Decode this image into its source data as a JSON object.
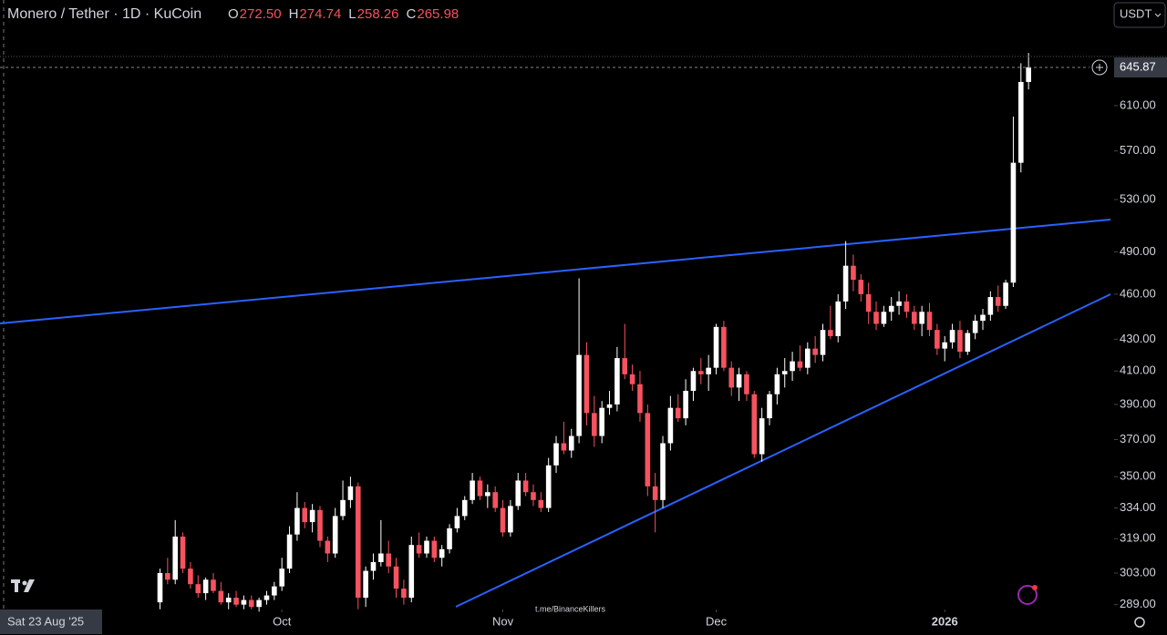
{
  "chart_data": {
    "type": "candlestick",
    "title": "Monero / Tether · 1D · KuCoin",
    "ohlc_header": [
      {
        "key": "O",
        "value": "272.50"
      },
      {
        "key": "H",
        "value": "274.74"
      },
      {
        "key": "L",
        "value": "258.26"
      },
      {
        "key": "C",
        "value": "265.98"
      }
    ],
    "currency_button": "USDT",
    "last_price": 645.87,
    "crosshair_label": "Sat 23 Aug '25",
    "watermark": "t.me/BinanceKillers",
    "up_color": "#ffffff",
    "down_color": "#f7525f",
    "log_scale": true,
    "ylim": [
      287.3,
      714.5
    ],
    "yticks": [
      {
        "value": 289,
        "label": "289.00"
      },
      {
        "value": 303,
        "label": "303.00"
      },
      {
        "value": 319,
        "label": "319.00"
      },
      {
        "value": 334,
        "label": "334.00"
      },
      {
        "value": 350,
        "label": "350.00"
      },
      {
        "value": 370,
        "label": "370.00"
      },
      {
        "value": 390,
        "label": "390.00"
      },
      {
        "value": 410,
        "label": "410.00"
      },
      {
        "value": 430,
        "label": "430.00"
      },
      {
        "value": 460,
        "label": "460.00"
      },
      {
        "value": 490,
        "label": "490.00"
      },
      {
        "value": 530,
        "label": "530.00"
      },
      {
        "value": 570,
        "label": "570.00"
      },
      {
        "value": 610,
        "label": "610.00"
      }
    ],
    "xlim": [
      -21,
      122
    ],
    "xticks": [
      {
        "value": 16,
        "label": "Oct"
      },
      {
        "value": 45,
        "label": "Nov"
      },
      {
        "value": 73,
        "label": "Dec"
      },
      {
        "value": 103,
        "label": "2026"
      }
    ],
    "ohlc": [
      [
        290,
        305,
        287,
        303
      ],
      [
        303,
        310,
        298,
        300
      ],
      [
        300,
        328,
        298,
        320
      ],
      [
        320,
        322,
        303,
        305
      ],
      [
        305,
        308,
        296,
        298
      ],
      [
        298,
        302,
        292,
        294
      ],
      [
        294,
        301,
        291,
        300
      ],
      [
        300,
        303,
        294,
        295
      ],
      [
        295,
        299,
        289,
        290
      ],
      [
        290,
        294,
        287,
        292
      ],
      [
        292,
        295,
        288,
        289
      ],
      [
        289,
        293,
        287,
        291
      ],
      [
        291,
        293,
        287,
        288
      ],
      [
        288,
        292,
        286,
        291
      ],
      [
        291,
        295,
        289,
        293
      ],
      [
        293,
        299,
        291,
        297
      ],
      [
        297,
        310,
        295,
        305
      ],
      [
        305,
        325,
        303,
        321
      ],
      [
        321,
        342,
        318,
        334
      ],
      [
        334,
        337,
        324,
        327
      ],
      [
        327,
        336,
        322,
        333
      ],
      [
        333,
        335,
        315,
        318
      ],
      [
        318,
        320,
        308,
        312
      ],
      [
        312,
        334,
        310,
        330
      ],
      [
        330,
        348,
        328,
        338
      ],
      [
        338,
        350,
        334,
        345
      ],
      [
        345,
        347,
        287,
        292
      ],
      [
        292,
        306,
        288,
        304
      ],
      [
        304,
        312,
        300,
        308
      ],
      [
        308,
        328,
        306,
        312
      ],
      [
        312,
        318,
        303,
        306
      ],
      [
        306,
        310,
        292,
        296
      ],
      [
        296,
        300,
        289,
        292
      ],
      [
        292,
        320,
        290,
        316
      ],
      [
        316,
        322,
        310,
        312
      ],
      [
        312,
        320,
        310,
        318
      ],
      [
        318,
        320,
        308,
        310
      ],
      [
        310,
        316,
        306,
        314
      ],
      [
        314,
        326,
        312,
        324
      ],
      [
        324,
        334,
        322,
        330
      ],
      [
        330,
        340,
        328,
        338
      ],
      [
        338,
        352,
        336,
        348
      ],
      [
        348,
        350,
        338,
        340
      ],
      [
        340,
        346,
        334,
        342
      ],
      [
        342,
        345,
        332,
        334
      ],
      [
        334,
        338,
        320,
        322
      ],
      [
        322,
        338,
        320,
        335
      ],
      [
        335,
        352,
        333,
        348
      ],
      [
        348,
        352,
        340,
        342
      ],
      [
        342,
        346,
        335,
        338
      ],
      [
        338,
        342,
        332,
        334
      ],
      [
        334,
        360,
        332,
        356
      ],
      [
        356,
        372,
        352,
        368
      ],
      [
        368,
        380,
        362,
        364
      ],
      [
        364,
        376,
        360,
        372
      ],
      [
        372,
        471,
        368,
        420
      ],
      [
        420,
        428,
        378,
        385
      ],
      [
        385,
        395,
        366,
        372
      ],
      [
        372,
        392,
        368,
        388
      ],
      [
        388,
        398,
        384,
        390
      ],
      [
        390,
        425,
        386,
        418
      ],
      [
        418,
        440,
        405,
        408
      ],
      [
        408,
        414,
        398,
        402
      ],
      [
        402,
        410,
        380,
        385
      ],
      [
        385,
        390,
        340,
        345
      ],
      [
        345,
        352,
        322,
        338
      ],
      [
        338,
        372,
        334,
        368
      ],
      [
        368,
        395,
        364,
        388
      ],
      [
        388,
        396,
        380,
        382
      ],
      [
        382,
        405,
        378,
        398
      ],
      [
        398,
        412,
        392,
        410
      ],
      [
        410,
        418,
        402,
        408
      ],
      [
        408,
        420,
        398,
        412
      ],
      [
        412,
        440,
        408,
        438
      ],
      [
        438,
        442,
        410,
        412
      ],
      [
        412,
        416,
        395,
        400
      ],
      [
        400,
        412,
        392,
        408
      ],
      [
        408,
        410,
        392,
        396
      ],
      [
        396,
        398,
        360,
        362
      ],
      [
        362,
        388,
        358,
        382
      ],
      [
        382,
        398,
        378,
        396
      ],
      [
        396,
        412,
        390,
        408
      ],
      [
        408,
        418,
        400,
        410
      ],
      [
        410,
        422,
        404,
        416
      ],
      [
        416,
        426,
        410,
        412
      ],
      [
        412,
        428,
        408,
        424
      ],
      [
        424,
        432,
        415,
        420
      ],
      [
        420,
        440,
        416,
        436
      ],
      [
        436,
        452,
        430,
        432
      ],
      [
        432,
        460,
        428,
        455
      ],
      [
        455,
        498,
        450,
        480
      ],
      [
        480,
        488,
        462,
        470
      ],
      [
        470,
        474,
        455,
        460
      ],
      [
        460,
        468,
        440,
        448
      ],
      [
        448,
        455,
        436,
        440
      ],
      [
        440,
        452,
        438,
        448
      ],
      [
        448,
        458,
        442,
        452
      ],
      [
        452,
        462,
        446,
        455
      ],
      [
        455,
        460,
        444,
        448
      ],
      [
        448,
        452,
        436,
        440
      ],
      [
        440,
        452,
        432,
        448
      ],
      [
        448,
        454,
        432,
        436
      ],
      [
        436,
        440,
        420,
        424
      ],
      [
        424,
        432,
        416,
        428
      ],
      [
        428,
        440,
        424,
        436
      ],
      [
        436,
        442,
        418,
        422
      ],
      [
        422,
        436,
        420,
        434
      ],
      [
        434,
        446,
        430,
        442
      ],
      [
        442,
        450,
        436,
        446
      ],
      [
        446,
        462,
        442,
        458
      ],
      [
        458,
        466,
        448,
        452
      ],
      [
        452,
        470,
        450,
        468
      ],
      [
        468,
        600,
        465,
        560
      ],
      [
        560,
        650,
        552,
        632
      ],
      [
        632,
        660,
        625,
        646
      ]
    ]
  }
}
